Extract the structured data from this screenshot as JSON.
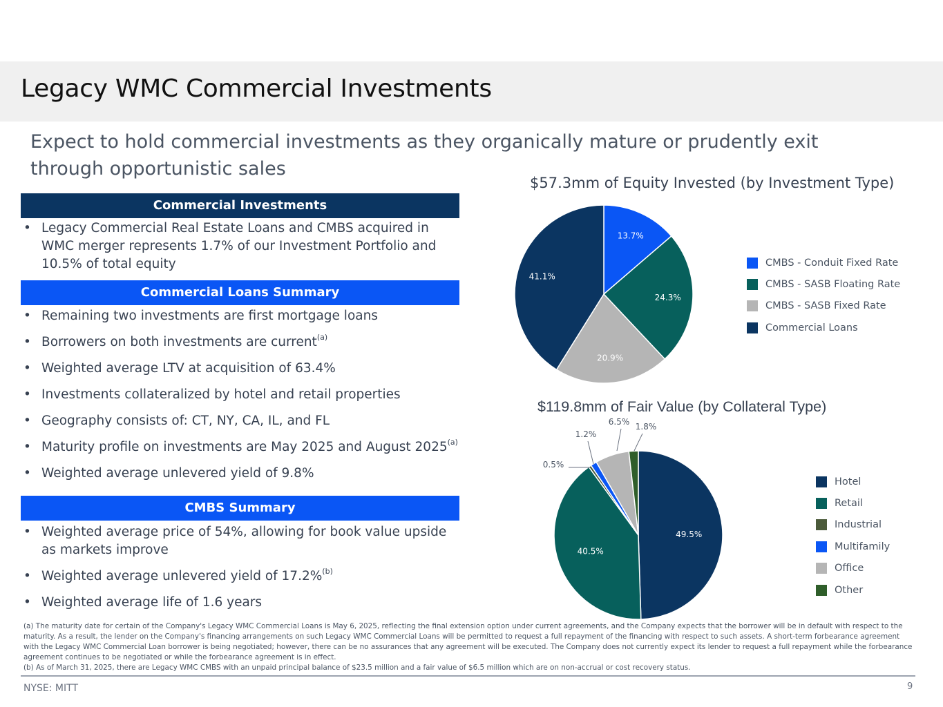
{
  "header": {
    "title": "Legacy WMC Commercial Investments",
    "subtitle": "Expect to hold commercial investments as they organically mature or prudently exit through opportunistic sales"
  },
  "sections": {
    "commercial_investments": {
      "heading": "Commercial Investments",
      "bullets": [
        "Legacy Commercial Real Estate Loans and CMBS acquired in WMC merger represents 1.7% of our Investment Portfolio and 10.5% of total equity"
      ]
    },
    "loans_summary": {
      "heading": "Commercial Loans Summary",
      "b1": "Remaining two investments are first mortgage loans",
      "b2": "Borrowers on both investments are current",
      "b2_sup": "(a)",
      "b3": "Weighted average LTV at acquisition of 63.4%",
      "b4": "Investments collateralized by hotel and retail properties",
      "b5": "Geography consists of: CT, NY, CA, IL, and FL",
      "b6": "Maturity profile on investments are May 2025 and August 2025",
      "b6_sup": "(a)",
      "b7": "Weighted average unlevered yield of 9.8%"
    },
    "cmbs_summary": {
      "heading": "CMBS Summary",
      "b1": "Weighted average price of 54%, allowing for book value upside as markets improve",
      "b2": "Weighted average unlevered yield of 17.2%",
      "b2_sup": "(b)",
      "b3": "Weighted average life of 1.6 years"
    }
  },
  "chart_data": [
    {
      "type": "pie",
      "title": "$57.3mm of Equity Invested (by Investment Type)",
      "categories": [
        "CMBS - Conduit Fixed Rate",
        "CMBS - SASB Floating Rate",
        "CMBS - SASB Fixed Rate",
        "Commercial Loans"
      ],
      "values": [
        13.7,
        24.3,
        20.9,
        41.1
      ],
      "labels": [
        "13.7%",
        "24.3%",
        "20.9%",
        "41.1%"
      ],
      "colors": [
        "#0a56f5",
        "#07605c",
        "#b5b5b5",
        "#0b3561"
      ],
      "legend": "right"
    },
    {
      "type": "pie",
      "title": "$119.8mm of Fair Value (by Collateral Type)",
      "categories": [
        "Hotel",
        "Retail",
        "Industrial",
        "Multifamily",
        "Office",
        "Other"
      ],
      "values": [
        49.5,
        40.5,
        0.5,
        1.2,
        6.5,
        1.8
      ],
      "labels": [
        "49.5%",
        "40.5%",
        "0.5%",
        "1.2%",
        "6.5%",
        "1.8%"
      ],
      "colors": [
        "#0b3561",
        "#07605c",
        "#4b5a3a",
        "#0a56f5",
        "#b5b5b5",
        "#2f5e2a"
      ],
      "legend": "right"
    }
  ],
  "footnotes": {
    "a": "(a) The maturity date for certain of the Company's Legacy WMC Commercial Loans is May 6, 2025, reflecting the final extension option under current agreements, and the Company expects that the borrower will be in default with respect to the maturity. As a result, the lender on the Company's financing arrangements on such Legacy WMC Commercial Loans will be permitted to request a full repayment of the financing with respect to such assets. A short-term forbearance agreement with the Legacy WMC Commercial Loan borrower is being negotiated; however, there can be no assurances that any agreement will be executed. The Company does not currently expect its lender to request a full repayment while the forbearance agreement continues to be negotiated or while the forbearance agreement is in effect.",
    "b": "(b) As of March 31, 2025, there are Legacy WMC CMBS with an unpaid principal balance of $23.5 million and a fair value of $6.5 million which are on non-accrual or cost recovery status."
  },
  "footer": {
    "ticker": "NYSE: MITT",
    "page_number": "9"
  }
}
